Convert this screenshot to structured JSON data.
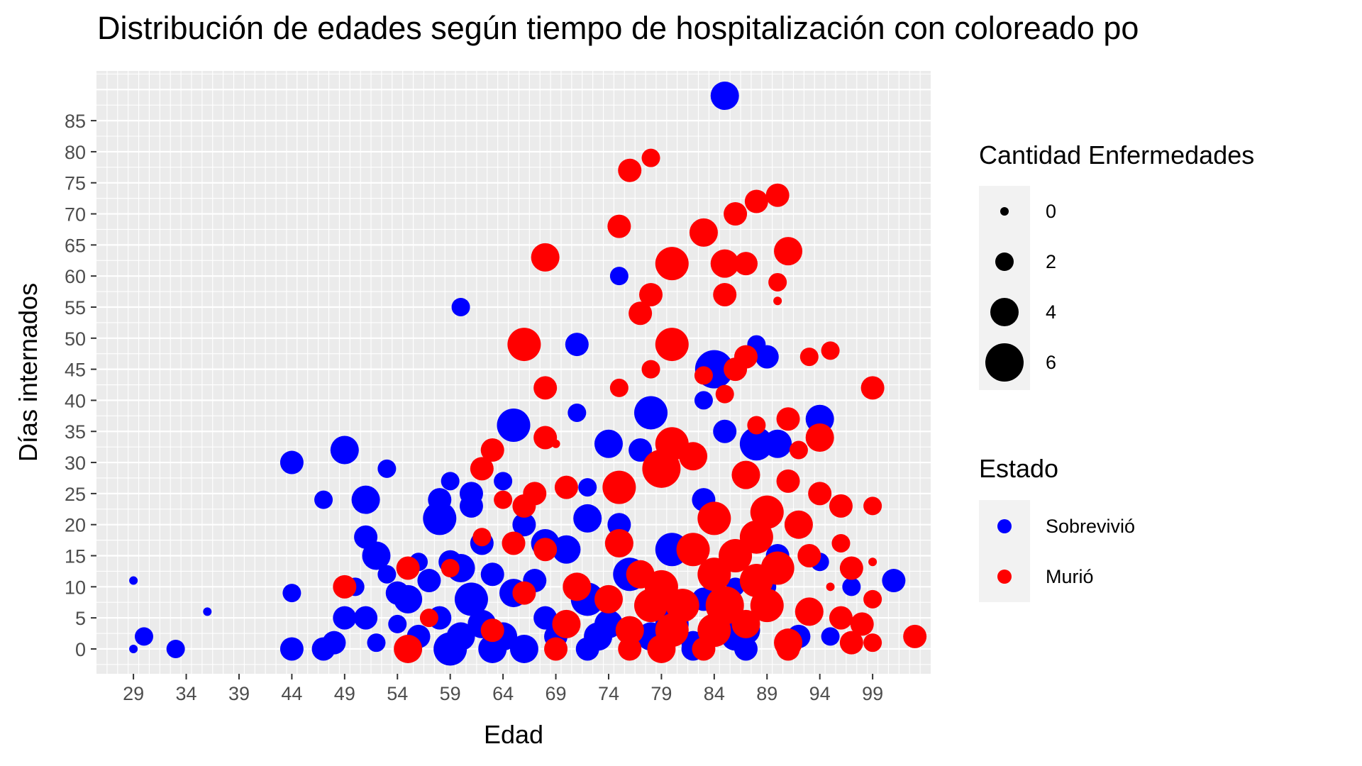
{
  "chart_data": {
    "type": "scatter",
    "title": "Distribución de edades según tiempo de hospitalización con coloreado po",
    "xlabel": "Edad",
    "ylabel": "Días internados",
    "xlim": [
      25.5,
      104.5
    ],
    "ylim": [
      -4,
      93
    ],
    "x_ticks": [
      "29",
      "34",
      "39",
      "44",
      "49",
      "54",
      "59",
      "64",
      "69",
      "74",
      "79",
      "84",
      "89",
      "94",
      "99"
    ],
    "y_ticks": [
      "0",
      "5",
      "10",
      "15",
      "20",
      "25",
      "30",
      "35",
      "40",
      "45",
      "50",
      "55",
      "60",
      "65",
      "70",
      "75",
      "80",
      "85"
    ],
    "grid": true,
    "legend_position": "right",
    "size_legend": {
      "title": "Cantidad Enfermedades",
      "entries": [
        {
          "label": "0",
          "value": 0
        },
        {
          "label": "2",
          "value": 2
        },
        {
          "label": "4",
          "value": 4
        },
        {
          "label": "6",
          "value": 6
        }
      ]
    },
    "color_legend": {
      "title": "Estado",
      "entries": [
        {
          "label": "Sobrevivió",
          "color": "#0000ff"
        },
        {
          "label": "Murió",
          "color": "#ff0000"
        }
      ]
    },
    "series": [
      {
        "name": "Sobrevivió",
        "color": "#0000ff",
        "points": [
          [
            85,
            89,
            4
          ],
          [
            75,
            60,
            2
          ],
          [
            60,
            55,
            2
          ],
          [
            71,
            49,
            3
          ],
          [
            88,
            49,
            2
          ],
          [
            89,
            47,
            3
          ],
          [
            84,
            45,
            6
          ],
          [
            78,
            38,
            5
          ],
          [
            71,
            38,
            2
          ],
          [
            94,
            37,
            4
          ],
          [
            83,
            40,
            2
          ],
          [
            65,
            36,
            5
          ],
          [
            85,
            35,
            3
          ],
          [
            74,
            33,
            4
          ],
          [
            88,
            33,
            5
          ],
          [
            90,
            33,
            4
          ],
          [
            77,
            32,
            3
          ],
          [
            49,
            32,
            4
          ],
          [
            44,
            30,
            3
          ],
          [
            53,
            29,
            2
          ],
          [
            64,
            27,
            2
          ],
          [
            59,
            27,
            2
          ],
          [
            61,
            25,
            3
          ],
          [
            72,
            26,
            2
          ],
          [
            75,
            25,
            2
          ],
          [
            47,
            24,
            2
          ],
          [
            51,
            24,
            4
          ],
          [
            83,
            24,
            3
          ],
          [
            58,
            24,
            3
          ],
          [
            61,
            23,
            3
          ],
          [
            58,
            21,
            5
          ],
          [
            66,
            20,
            3
          ],
          [
            72,
            21,
            4
          ],
          [
            75,
            20,
            3
          ],
          [
            51,
            18,
            3
          ],
          [
            68,
            17,
            4
          ],
          [
            80,
            16,
            5
          ],
          [
            52,
            15,
            4
          ],
          [
            62,
            17,
            3
          ],
          [
            70,
            16,
            4
          ],
          [
            56,
            14,
            2
          ],
          [
            90,
            15,
            3
          ],
          [
            94,
            14,
            2
          ],
          [
            59,
            14,
            3
          ],
          [
            60,
            13,
            4
          ],
          [
            53,
            12,
            2
          ],
          [
            63,
            12,
            3
          ],
          [
            76,
            12,
            5
          ],
          [
            101,
            11,
            3
          ],
          [
            29,
            11,
            0
          ],
          [
            57,
            11,
            3
          ],
          [
            67,
            11,
            3
          ],
          [
            86,
            10,
            2
          ],
          [
            97,
            10,
            2
          ],
          [
            50,
            10,
            2
          ],
          [
            44,
            9,
            2
          ],
          [
            54,
            9,
            3
          ],
          [
            55,
            8,
            4
          ],
          [
            61,
            8,
            5
          ],
          [
            65,
            9,
            4
          ],
          [
            72,
            8,
            5
          ],
          [
            79,
            8,
            4
          ],
          [
            83,
            8,
            3
          ],
          [
            89,
            10,
            2
          ],
          [
            36,
            6,
            0
          ],
          [
            49,
            5,
            3
          ],
          [
            51,
            5,
            3
          ],
          [
            54,
            4,
            2
          ],
          [
            58,
            5,
            3
          ],
          [
            62,
            4,
            4
          ],
          [
            68,
            5,
            3
          ],
          [
            74,
            4,
            4
          ],
          [
            80,
            4,
            5
          ],
          [
            87,
            3,
            4
          ],
          [
            30,
            2,
            2
          ],
          [
            48,
            1,
            3
          ],
          [
            52,
            1,
            2
          ],
          [
            56,
            2,
            3
          ],
          [
            60,
            2,
            4
          ],
          [
            64,
            2,
            4
          ],
          [
            69,
            2,
            3
          ],
          [
            73,
            2,
            4
          ],
          [
            78,
            2,
            4
          ],
          [
            82,
            1,
            3
          ],
          [
            86,
            2,
            4
          ],
          [
            92,
            2,
            3
          ],
          [
            95,
            2,
            2
          ],
          [
            29,
            0,
            0
          ],
          [
            33,
            0,
            2
          ],
          [
            44,
            0,
            3
          ],
          [
            47,
            0,
            3
          ],
          [
            59,
            0,
            5
          ],
          [
            63,
            0,
            4
          ],
          [
            66,
            0,
            4
          ],
          [
            72,
            0,
            3
          ],
          [
            82,
            0,
            3
          ],
          [
            87,
            0,
            3
          ]
        ]
      },
      {
        "name": "Murió",
        "color": "#ff0000",
        "points": [
          [
            78,
            79,
            2
          ],
          [
            76,
            77,
            3
          ],
          [
            88,
            72,
            3
          ],
          [
            90,
            73,
            3
          ],
          [
            86,
            70,
            3
          ],
          [
            75,
            68,
            3
          ],
          [
            83,
            67,
            4
          ],
          [
            68,
            63,
            4
          ],
          [
            91,
            64,
            4
          ],
          [
            80,
            62,
            5
          ],
          [
            85,
            62,
            4
          ],
          [
            87,
            62,
            3
          ],
          [
            90,
            59,
            2
          ],
          [
            78,
            57,
            3
          ],
          [
            85,
            57,
            3
          ],
          [
            90,
            56,
            0
          ],
          [
            77,
            54,
            3
          ],
          [
            66,
            49,
            5
          ],
          [
            80,
            49,
            5
          ],
          [
            81,
            50,
            0
          ],
          [
            95,
            48,
            2
          ],
          [
            93,
            47,
            2
          ],
          [
            87,
            47,
            3
          ],
          [
            78,
            45,
            2
          ],
          [
            86,
            45,
            3
          ],
          [
            83,
            44,
            2
          ],
          [
            68,
            42,
            3
          ],
          [
            75,
            42,
            2
          ],
          [
            99,
            42,
            3
          ],
          [
            85,
            41,
            2
          ],
          [
            88,
            36,
            2
          ],
          [
            91,
            37,
            3
          ],
          [
            94,
            34,
            4
          ],
          [
            68,
            34,
            3
          ],
          [
            69,
            33,
            0
          ],
          [
            80,
            33,
            5
          ],
          [
            63,
            32,
            3
          ],
          [
            82,
            31,
            4
          ],
          [
            92,
            32,
            2
          ],
          [
            62,
            29,
            3
          ],
          [
            79,
            29,
            6
          ],
          [
            87,
            28,
            4
          ],
          [
            91,
            27,
            3
          ],
          [
            70,
            26,
            3
          ],
          [
            67,
            25,
            3
          ],
          [
            75,
            26,
            5
          ],
          [
            94,
            25,
            3
          ],
          [
            96,
            23,
            3
          ],
          [
            99,
            23,
            2
          ],
          [
            64,
            24,
            2
          ],
          [
            66,
            23,
            3
          ],
          [
            89,
            22,
            5
          ],
          [
            84,
            21,
            5
          ],
          [
            92,
            20,
            4
          ],
          [
            88,
            18,
            5
          ],
          [
            62,
            18,
            2
          ],
          [
            65,
            17,
            3
          ],
          [
            75,
            17,
            4
          ],
          [
            82,
            16,
            5
          ],
          [
            86,
            15,
            5
          ],
          [
            96,
            17,
            2
          ],
          [
            93,
            15,
            3
          ],
          [
            68,
            16,
            3
          ],
          [
            90,
            13,
            5
          ],
          [
            97,
            13,
            3
          ],
          [
            99,
            14,
            0
          ],
          [
            55,
            13,
            3
          ],
          [
            59,
            13,
            2
          ],
          [
            49,
            10,
            3
          ],
          [
            77,
            12,
            4
          ],
          [
            84,
            12,
            5
          ],
          [
            95,
            10,
            0
          ],
          [
            88,
            11,
            5
          ],
          [
            79,
            10,
            5
          ],
          [
            71,
            10,
            4
          ],
          [
            99,
            8,
            2
          ],
          [
            66,
            9,
            3
          ],
          [
            74,
            8,
            4
          ],
          [
            78,
            7,
            5
          ],
          [
            81,
            7,
            5
          ],
          [
            85,
            7,
            6
          ],
          [
            89,
            7,
            5
          ],
          [
            57,
            5,
            2
          ],
          [
            93,
            6,
            4
          ],
          [
            96,
            5,
            3
          ],
          [
            98,
            4,
            3
          ],
          [
            63,
            3,
            3
          ],
          [
            70,
            4,
            4
          ],
          [
            76,
            3,
            4
          ],
          [
            80,
            3,
            5
          ],
          [
            84,
            3,
            5
          ],
          [
            87,
            4,
            4
          ],
          [
            103,
            2,
            3
          ],
          [
            91,
            1,
            4
          ],
          [
            97,
            1,
            3
          ],
          [
            99,
            1,
            2
          ],
          [
            55,
            0,
            4
          ],
          [
            69,
            0,
            3
          ],
          [
            76,
            0,
            3
          ],
          [
            79,
            0,
            4
          ],
          [
            83,
            0,
            3
          ],
          [
            91,
            0,
            3
          ]
        ]
      }
    ]
  }
}
